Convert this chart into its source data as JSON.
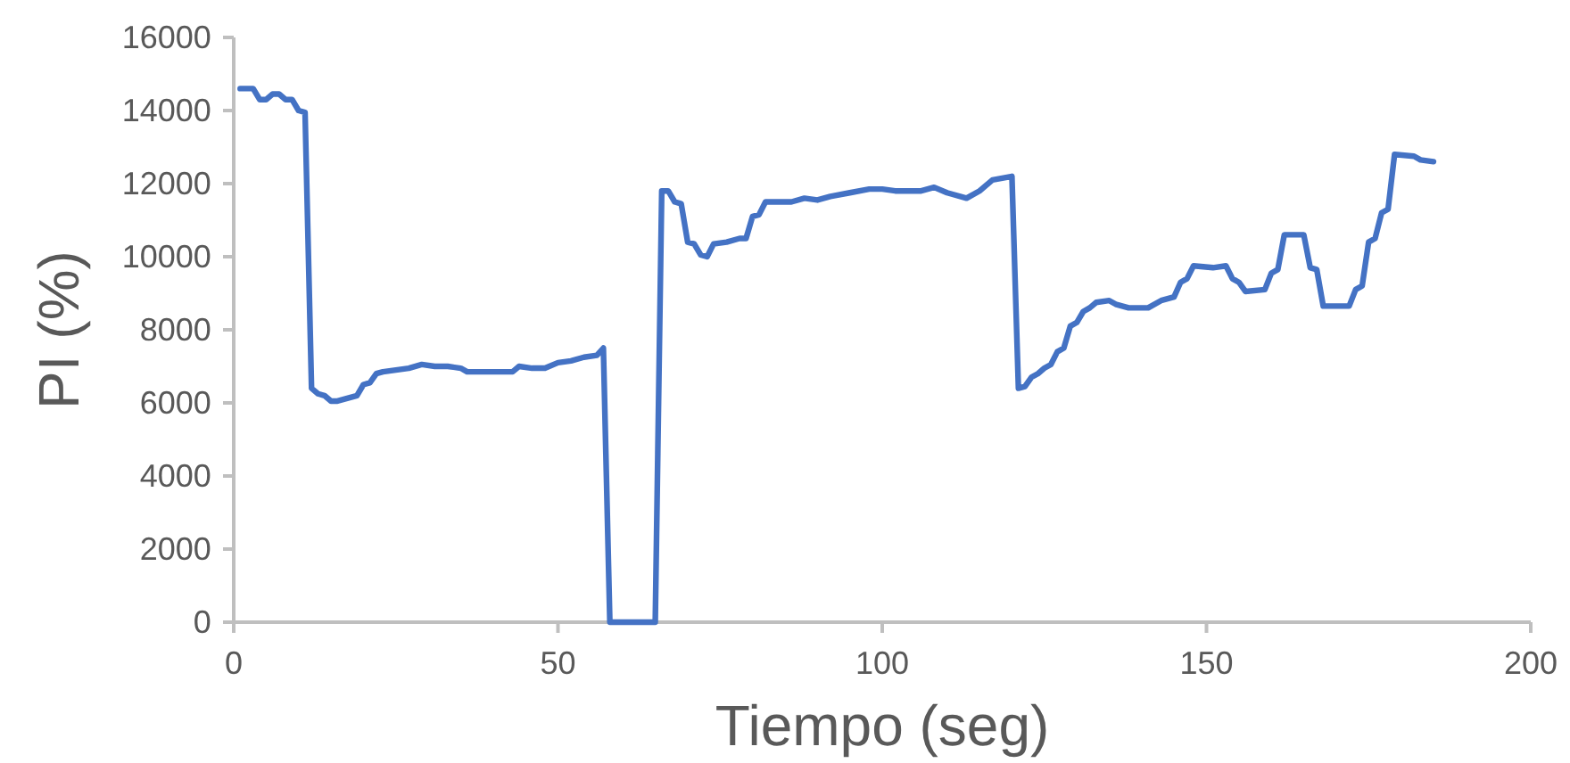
{
  "chart_data": {
    "type": "line",
    "xlabel": "Tiempo (seg)",
    "ylabel": "PI (%)",
    "xlim": [
      0,
      200
    ],
    "xticks": [
      0,
      50,
      100,
      150,
      200
    ],
    "ylim": [
      0,
      16000
    ],
    "yticks": [
      0,
      2000,
      4000,
      6000,
      8000,
      10000,
      12000,
      14000,
      16000
    ],
    "grid": false,
    "marker": "none",
    "line_style": "solid",
    "series": [
      {
        "color": "#4472c4",
        "x": [
          1,
          3,
          4,
          5,
          6,
          7,
          8,
          9,
          10,
          11,
          12,
          13,
          14,
          15,
          16,
          17,
          18,
          19,
          20,
          21,
          22,
          23,
          25,
          27,
          29,
          31,
          33,
          35,
          36,
          38,
          40,
          43,
          44,
          46,
          48,
          50,
          52,
          54,
          56,
          57,
          58,
          65,
          66,
          67,
          68,
          69,
          70,
          71,
          72,
          73,
          74,
          76,
          78,
          79,
          80,
          81,
          82,
          86,
          88,
          90,
          92,
          95,
          98,
          100,
          102,
          106,
          108,
          110,
          113,
          115,
          117,
          120,
          121,
          122,
          123,
          124,
          125,
          126,
          127,
          128,
          129,
          130,
          131,
          132,
          133,
          135,
          136,
          138,
          141,
          143,
          145,
          146,
          147,
          148,
          151,
          153,
          154,
          155,
          156,
          159,
          160,
          161,
          162,
          165,
          166,
          167,
          168,
          172,
          173,
          174,
          175,
          176,
          177,
          178,
          179,
          182,
          183,
          185
        ],
        "values": [
          14600,
          14600,
          14300,
          14300,
          14450,
          14450,
          14300,
          14300,
          14000,
          13950,
          6400,
          6250,
          6200,
          6050,
          6050,
          6100,
          6150,
          6200,
          6500,
          6550,
          6800,
          6850,
          6900,
          6950,
          7050,
          7000,
          7000,
          6950,
          6850,
          6850,
          6850,
          6850,
          7000,
          6950,
          6950,
          7100,
          7150,
          7250,
          7300,
          7500,
          0,
          0,
          11800,
          11800,
          11500,
          11450,
          10400,
          10350,
          10050,
          10000,
          10350,
          10400,
          10500,
          10500,
          11100,
          11150,
          11500,
          11500,
          11600,
          11550,
          11650,
          11750,
          11850,
          11850,
          11800,
          11800,
          11900,
          11750,
          11600,
          11800,
          12100,
          12200,
          6400,
          6450,
          6700,
          6800,
          6950,
          7050,
          7400,
          7500,
          8100,
          8200,
          8500,
          8600,
          8750,
          8800,
          8700,
          8600,
          8600,
          8800,
          8900,
          9300,
          9400,
          9750,
          9700,
          9750,
          9400,
          9300,
          9050,
          9100,
          9550,
          9650,
          10600,
          10600,
          9700,
          9650,
          8650,
          8650,
          9100,
          9200,
          10400,
          10500,
          11200,
          11300,
          12800,
          12750,
          12650,
          12600
        ]
      }
    ]
  }
}
